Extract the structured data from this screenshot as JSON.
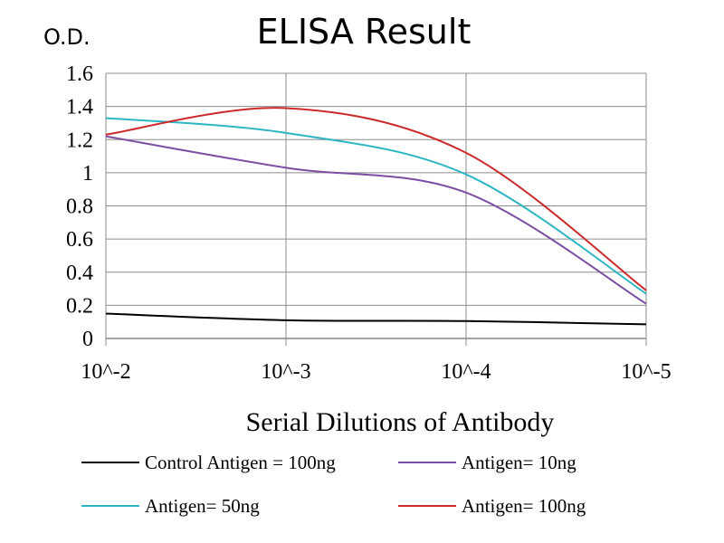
{
  "chart_data": {
    "type": "line",
    "title": "ELISA Result",
    "ylabel": "O.D.",
    "xlabel": "Serial  Dilutions  of Antibody",
    "categories": [
      "10^-2",
      "10^-3",
      "10^-4",
      "10^-5"
    ],
    "yticks": [
      "0",
      "0.2",
      "0.4",
      "0.6",
      "0.8",
      "1",
      "1.2",
      "1.4",
      "1.6"
    ],
    "ylim": [
      0,
      1.6
    ],
    "grid": true,
    "smooth": true,
    "legend_position": "bottom",
    "series": [
      {
        "name": "Control Antigen = 100ng",
        "color": "#000000",
        "values": [
          0.15,
          0.11,
          0.105,
          0.085
        ]
      },
      {
        "name": "Antigen= 10ng",
        "color": "#7a4ea3",
        "values": [
          1.22,
          1.03,
          0.88,
          0.21
        ]
      },
      {
        "name": "Antigen= 50ng",
        "color": "#2cb5c3",
        "values": [
          1.33,
          1.24,
          0.99,
          0.27
        ]
      },
      {
        "name": "Antigen= 100ng",
        "color": "#cc2a2a",
        "values": [
          1.23,
          1.39,
          1.12,
          0.29
        ]
      }
    ]
  }
}
